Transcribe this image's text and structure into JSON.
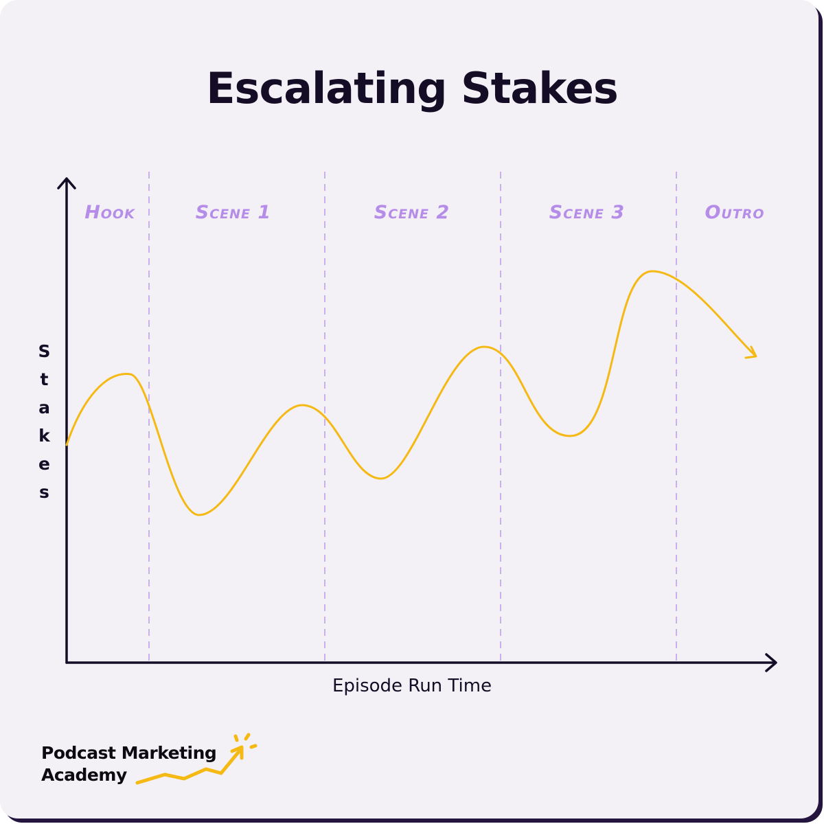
{
  "title": "Escalating Stakes",
  "y_axis_label": "Stakes",
  "x_axis_label": "Episode Run Time",
  "sections": [
    "Hook",
    "Scene 1",
    "Scene 2",
    "Scene 3",
    "Outro"
  ],
  "logo": {
    "lines": [
      "Podcast Marketing",
      "Academy"
    ]
  }
}
